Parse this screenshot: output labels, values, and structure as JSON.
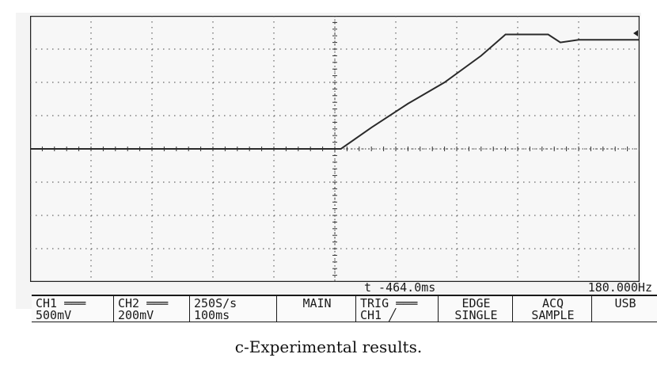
{
  "status": {
    "trigger_time": "t -464.0ms",
    "frequency": "180.000Hz"
  },
  "toolbar": {
    "ch1_label": "CH1 ═══",
    "ch1_scale": "500mV",
    "ch2_label": "CH2 ═══",
    "ch2_scale": "200mV",
    "sample_rate": "250S/s",
    "time_base": "100ms",
    "main_label": "MAIN",
    "trig_label": "TRIG ═══",
    "trig_source": "CH1 ╱",
    "edge_label": "EDGE",
    "mode_label": "SINGLE",
    "acq_label": "ACQ",
    "acq_mode": "SAMPLE",
    "usb_label": "USB"
  },
  "markers": {
    "ground_marker": "1▸"
  },
  "caption": "c-Experimental results.",
  "trace": {
    "color": "#2a2a2a",
    "points": [
      [
        0.0,
        0.0
      ],
      [
        0.51,
        0.0
      ],
      [
        0.56,
        0.08
      ],
      [
        0.62,
        0.17
      ],
      [
        0.68,
        0.25
      ],
      [
        0.74,
        0.35
      ],
      [
        0.78,
        0.43
      ],
      [
        0.85,
        0.43
      ],
      [
        0.87,
        0.4
      ],
      [
        0.9,
        0.41
      ],
      [
        0.95,
        0.41
      ],
      [
        1.0,
        0.41
      ]
    ]
  }
}
